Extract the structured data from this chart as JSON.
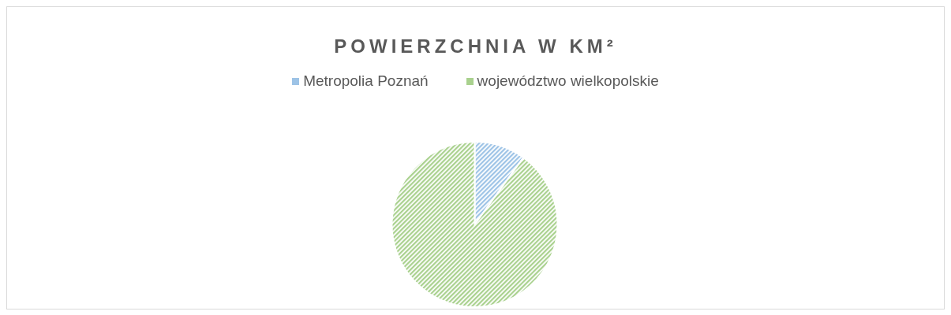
{
  "chart_data": {
    "type": "pie",
    "title": "POWIERZCHNIA W KM²",
    "categories": [
      "Metropolia Poznań",
      "województwo wielkopolskie"
    ],
    "values": [
      10,
      90
    ],
    "colors": [
      "#9dc3e6",
      "#a9d18e"
    ],
    "legend": "top"
  }
}
